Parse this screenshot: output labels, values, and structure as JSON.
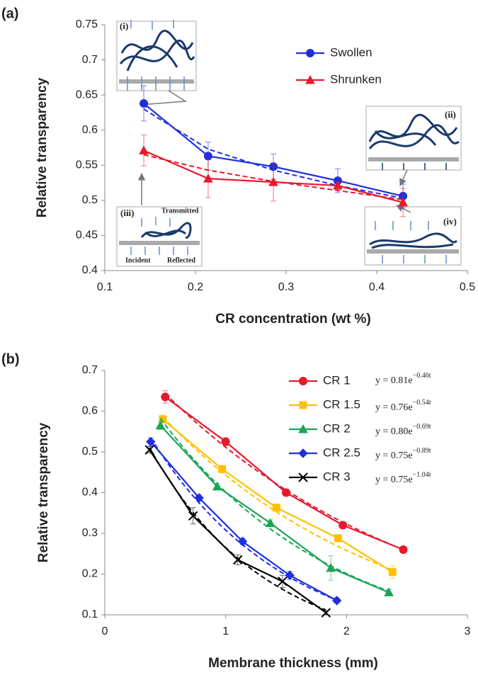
{
  "chart_data": [
    {
      "type": "line",
      "panel_label": "(a)",
      "x_label": "CR concentration (wt %)",
      "y_label": "Relative transparency",
      "x": [
        0.143,
        0.214,
        0.286,
        0.357,
        0.429
      ],
      "xlim": [
        0.1,
        0.5
      ],
      "xticks": [
        0.1,
        0.2,
        0.3,
        0.4,
        0.5
      ],
      "ylim": [
        0.4,
        0.75
      ],
      "yticks": [
        0.4,
        0.45,
        0.5,
        0.55,
        0.6,
        0.65,
        0.7,
        0.75
      ],
      "legend": "upper right",
      "series": [
        {
          "name": "Swollen",
          "color": "#1f2fe0",
          "marker": "circle",
          "values": [
            0.638,
            0.563,
            0.548,
            0.528,
            0.506
          ],
          "errors": [
            0.025,
            0.02,
            0.018,
            0.017,
            0.017
          ],
          "fit_values": [
            0.63,
            0.573,
            0.543,
            0.521,
            0.503
          ]
        },
        {
          "name": "Shrunken",
          "color": "#e8192c",
          "marker": "triangle",
          "values": [
            0.571,
            0.531,
            0.526,
            0.521,
            0.497
          ],
          "errors": [
            0.022,
            0.027,
            0.027,
            0.005,
            0.02
          ],
          "fit_values": [
            0.565,
            0.543,
            0.527,
            0.514,
            0.501
          ]
        }
      ],
      "insets": [
        {
          "label": "(i)"
        },
        {
          "label": "(ii)"
        },
        {
          "label": "(iii)",
          "texts": [
            "Transmitted",
            "Incident",
            "Reflected"
          ]
        },
        {
          "label": "(iv)"
        }
      ]
    },
    {
      "type": "line",
      "panel_label": "(b)",
      "x_label": "Membrane thickness (mm)",
      "y_label": "Relative transparency",
      "xlim": [
        0,
        3
      ],
      "xticks": [
        0,
        1,
        2,
        3
      ],
      "ylim": [
        0.1,
        0.7
      ],
      "yticks": [
        0.1,
        0.2,
        0.3,
        0.4,
        0.5,
        0.6,
        0.7
      ],
      "legend": "upper right",
      "series": [
        {
          "name": "CR 1",
          "color": "#e8192c",
          "marker": "circle",
          "x": [
            0.5,
            1.0,
            1.5,
            1.97,
            2.47
          ],
          "values": [
            0.635,
            0.525,
            0.4,
            0.32,
            0.26
          ],
          "errors": [
            0.015,
            0.01,
            0.008,
            0.008,
            0.008
          ],
          "fit": {
            "a": 0.81,
            "b": -0.46,
            "base": "y = 0.81e",
            "exponent": "−0.46t"
          }
        },
        {
          "name": "CR 1.5",
          "color": "#ffc000",
          "marker": "square",
          "x": [
            0.48,
            0.97,
            1.42,
            1.93,
            2.38
          ],
          "values": [
            0.58,
            0.458,
            0.363,
            0.288,
            0.205
          ],
          "errors": [
            0.01,
            0.008,
            0.008,
            0.008,
            0.015
          ],
          "fit": {
            "a": 0.76,
            "b": -0.54,
            "base": "y = 0.76e",
            "exponent": "−0.54t"
          }
        },
        {
          "name": "CR 2",
          "color": "#1aa557",
          "marker": "triangle",
          "x": [
            0.46,
            0.93,
            1.37,
            1.87,
            2.35
          ],
          "values": [
            0.565,
            0.415,
            0.325,
            0.215,
            0.155
          ],
          "errors": [
            0.01,
            0.008,
            0.008,
            0.03,
            0.008
          ],
          "fit": {
            "a": 0.8,
            "b": -0.69,
            "base": "y = 0.80e",
            "exponent": "−0.69t"
          }
        },
        {
          "name": "CR 2.5",
          "color": "#1f2fe0",
          "marker": "diamond",
          "x": [
            0.38,
            0.78,
            1.14,
            1.53,
            1.92
          ],
          "values": [
            0.525,
            0.387,
            0.28,
            0.197,
            0.135
          ],
          "errors": [
            0.01,
            0.008,
            0.008,
            0.01,
            0.006
          ],
          "fit": {
            "a": 0.75,
            "b": -0.89,
            "base": "y = 0.75e",
            "exponent": "−0.89t"
          }
        },
        {
          "name": "CR 3",
          "color": "#000000",
          "marker": "cross",
          "x": [
            0.37,
            0.73,
            1.1,
            1.47,
            1.83
          ],
          "values": [
            0.505,
            0.343,
            0.235,
            0.182,
            0.105
          ],
          "errors": [
            0.008,
            0.02,
            0.012,
            0.015,
            0.005
          ],
          "fit": {
            "a": 0.75,
            "b": -1.04,
            "base": "y = 0.75e",
            "exponent": "−1.04t"
          }
        }
      ]
    }
  ]
}
